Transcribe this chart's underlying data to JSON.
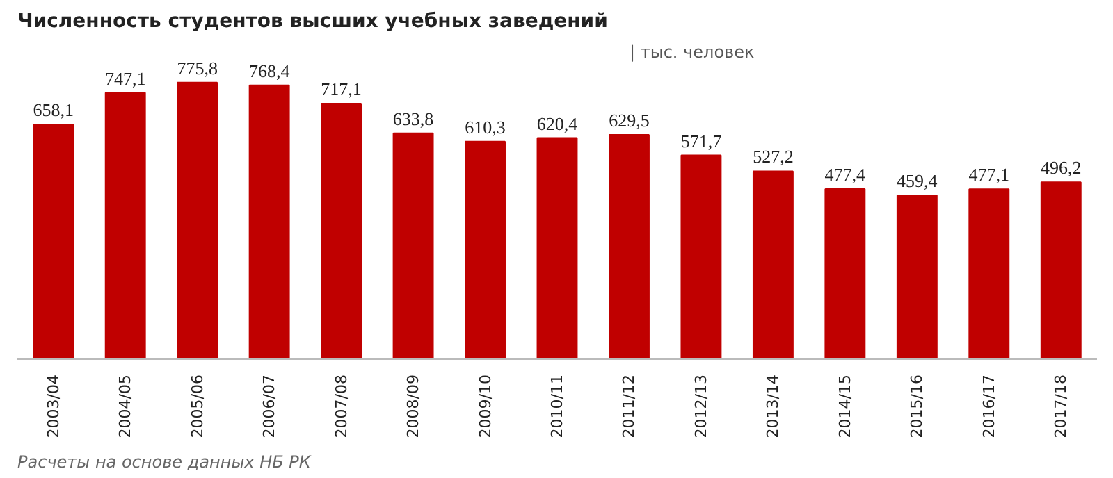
{
  "chart_data": {
    "type": "bar",
    "title": "Численность студентов высших учебных заведений",
    "subtitle": "| тыс. человек",
    "categories": [
      "2003/04",
      "2004/05",
      "2005/06",
      "2006/07",
      "2007/08",
      "2008/09",
      "2009/10",
      "2010/11",
      "2011/12",
      "2012/13",
      "2013/14",
      "2014/15",
      "2015/16",
      "2016/17",
      "2017/18"
    ],
    "values": [
      658.1,
      747.1,
      775.8,
      768.4,
      717.1,
      633.8,
      610.3,
      620.4,
      629.5,
      571.7,
      527.2,
      477.4,
      459.4,
      477.1,
      496.2
    ],
    "value_labels": [
      "658,1",
      "747,1",
      "775,8",
      "768,4",
      "717,1",
      "633,8",
      "610,3",
      "620,4",
      "629,5",
      "571,7",
      "527,2",
      "477,4",
      "459,4",
      "477,1",
      "496,2"
    ],
    "color": "#c00000",
    "tick_labels": "x",
    "annotations": [
      "Расчеты на основе данных НБ РК"
    ]
  }
}
